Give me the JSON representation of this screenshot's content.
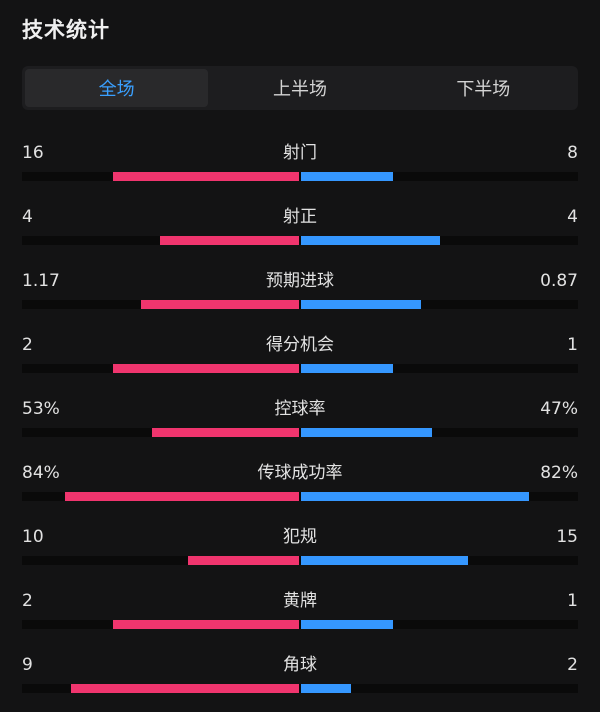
{
  "header": {
    "title": "技术统计"
  },
  "tabs": [
    {
      "label": "全场",
      "active": true
    },
    {
      "label": "上半场",
      "active": false
    },
    {
      "label": "下半场",
      "active": false
    }
  ],
  "colors": {
    "home": "#f0356e",
    "away": "#3597ff",
    "active_tab": "#3aa0ff"
  },
  "stats": [
    {
      "label": "射门",
      "home": "16",
      "away": "8",
      "home_fraction": 0.67,
      "away_fraction": 0.33
    },
    {
      "label": "射正",
      "home": "4",
      "away": "4",
      "home_fraction": 0.5,
      "away_fraction": 0.5
    },
    {
      "label": "预期进球",
      "home": "1.17",
      "away": "0.87",
      "home_fraction": 0.57,
      "away_fraction": 0.43
    },
    {
      "label": "得分机会",
      "home": "2",
      "away": "1",
      "home_fraction": 0.67,
      "away_fraction": 0.33
    },
    {
      "label": "控球率",
      "home": "53%",
      "away": "47%",
      "home_fraction": 0.53,
      "away_fraction": 0.47
    },
    {
      "label": "传球成功率",
      "home": "84%",
      "away": "82%",
      "home_fraction": 0.84,
      "away_fraction": 0.82
    },
    {
      "label": "犯规",
      "home": "10",
      "away": "15",
      "home_fraction": 0.4,
      "away_fraction": 0.6
    },
    {
      "label": "黄牌",
      "home": "2",
      "away": "1",
      "home_fraction": 0.67,
      "away_fraction": 0.33
    },
    {
      "label": "角球",
      "home": "9",
      "away": "2",
      "home_fraction": 0.82,
      "away_fraction": 0.18
    }
  ]
}
